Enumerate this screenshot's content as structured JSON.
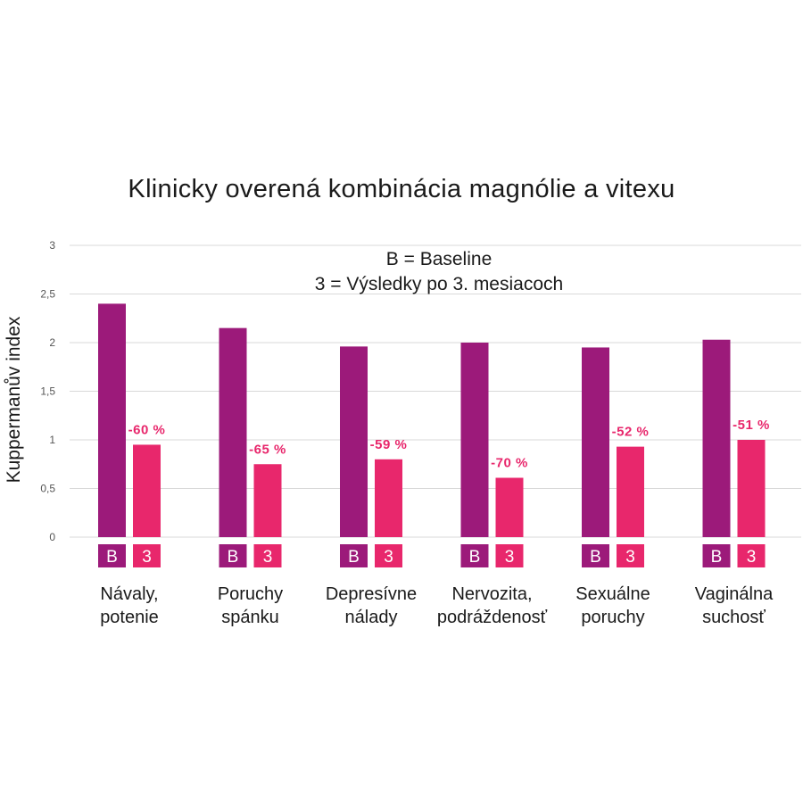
{
  "chart_data": {
    "type": "bar",
    "title": "Klinicky overená kombinácia magnólie a vitexu",
    "ylabel": "Kuppermanův index",
    "ylim": [
      0,
      3
    ],
    "yticks": [
      "0",
      "0,5",
      "1",
      "1,5",
      "2",
      "2,5",
      "3"
    ],
    "yticks_values": [
      0,
      0.5,
      1,
      1.5,
      2,
      2.5,
      3
    ],
    "grid": true,
    "legend_lines": [
      "B = Baseline",
      "3 = Výsledky po 3. mesiacoch"
    ],
    "categories": [
      [
        "Návaly,",
        "potenie"
      ],
      [
        "Poruchy",
        "spánku"
      ],
      [
        "Depresívne",
        "nálady"
      ],
      [
        "Nervozita,",
        "podráždenosť"
      ],
      [
        "Sexuálne",
        "poruchy"
      ],
      [
        "Vaginálna",
        "suchosť"
      ]
    ],
    "series": [
      {
        "name": "B",
        "color": "#9c1a7a",
        "values": [
          2.4,
          2.15,
          1.96,
          2.0,
          1.95,
          2.03
        ]
      },
      {
        "name": "3",
        "color": "#e8276c",
        "values": [
          0.95,
          0.75,
          0.8,
          0.61,
          0.93,
          1.0
        ]
      }
    ],
    "data_labels": [
      "-60 %",
      "-65 %",
      "-59 %",
      "-70 %",
      "-52 %",
      "-51 %"
    ]
  }
}
